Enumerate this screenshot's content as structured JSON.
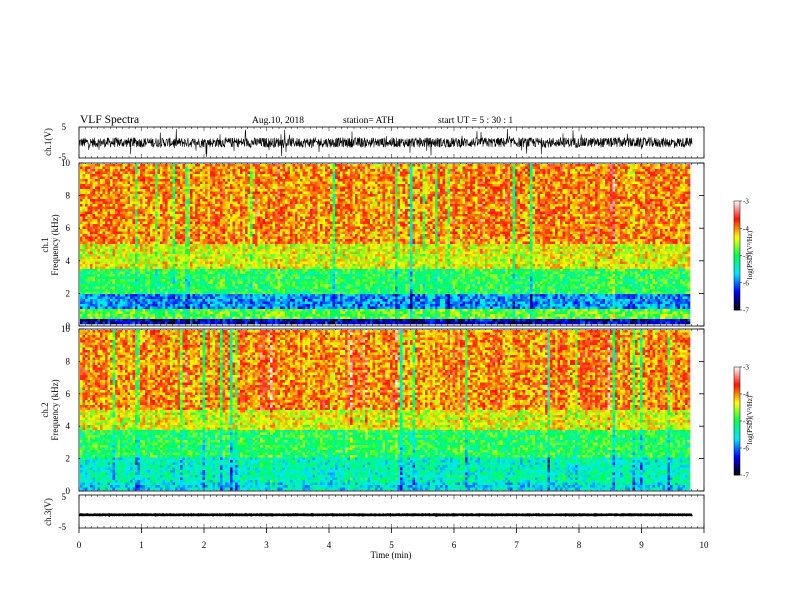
{
  "header": {
    "title": "VLF  Spectra",
    "date": "Aug.10, 2018",
    "station": "station= ATH",
    "start": "start  UT  =   5  : 30 : 1"
  },
  "chart_data": [
    {
      "type": "line",
      "panel": "ch1-waveform",
      "ylabel": "ch.1(V)",
      "ylim": [
        -5,
        5
      ],
      "yticks": [
        "5",
        "-5"
      ],
      "xlim": [
        0,
        10
      ],
      "trace": "dense broadband noise centered near 0 V, roughly ±2 V with spikes"
    },
    {
      "type": "heatmap",
      "panel": "ch1-spectrogram",
      "ylabel_lines": [
        "ch.1",
        "Frequency  (kHz)"
      ],
      "ylim": [
        0,
        10
      ],
      "yticks": [
        "0",
        "2",
        "4",
        "6",
        "8",
        "10"
      ],
      "xlim": [
        0,
        9.8
      ],
      "colorbar": {
        "label": "log(PSD)(V²/Hz)",
        "range": [
          -7,
          -3
        ],
        "ticks": [
          "-3",
          "-4",
          "-5",
          "-6",
          "-7"
        ]
      },
      "bands_log_psd": [
        {
          "f": [
            0,
            0.3
          ],
          "value": -6.5
        },
        {
          "f": [
            0.3,
            1.0
          ],
          "value": -4.8
        },
        {
          "f": [
            1.0,
            1.8
          ],
          "value": -5.9
        },
        {
          "f": [
            1.8,
            3.5
          ],
          "value": -5.0
        },
        {
          "f": [
            3.5,
            5.0
          ],
          "value": -4.4
        },
        {
          "f": [
            5.0,
            10.0
          ],
          "value": -4.0
        }
      ]
    },
    {
      "type": "heatmap",
      "panel": "ch2-spectrogram",
      "ylabel_lines": [
        "ch.2",
        "Frequency  (kHz)"
      ],
      "ylim": [
        0,
        10
      ],
      "yticks": [
        "0",
        "2",
        "4",
        "6",
        "8",
        "10"
      ],
      "xlim": [
        0,
        9.8
      ],
      "colorbar": {
        "label": "log(PSD)(V²/Hz)",
        "range": [
          -7,
          -3
        ],
        "ticks": [
          "-3",
          "-4",
          "-5",
          "-6",
          "-7"
        ]
      },
      "bands_log_psd": [
        {
          "f": [
            0,
            0.5
          ],
          "value": -5.6
        },
        {
          "f": [
            0.5,
            2.0
          ],
          "value": -5.4
        },
        {
          "f": [
            2.0,
            3.8
          ],
          "value": -5.0
        },
        {
          "f": [
            3.8,
            5.0
          ],
          "value": -4.4
        },
        {
          "f": [
            5.0,
            10.0
          ],
          "value": -4.0
        }
      ]
    },
    {
      "type": "line",
      "panel": "ch3-waveform",
      "ylabel": "ch.3(V)",
      "ylim": [
        -5,
        5
      ],
      "yticks": [
        "5",
        "-5"
      ],
      "xlim": [
        0,
        10
      ],
      "trace": "nearly flat trace at about -1 V"
    }
  ],
  "xaxis": {
    "label": "Time  (min)",
    "ticks": [
      "0",
      "1",
      "2",
      "3",
      "4",
      "5",
      "6",
      "7",
      "8",
      "9",
      "10"
    ],
    "range": [
      0,
      10
    ],
    "data_end": 9.8
  },
  "colors": {
    "colormap": [
      "#000000",
      "#0000ff",
      "#00e8ff",
      "#00ff50",
      "#ffff00",
      "#ff1000",
      "#ffffff"
    ],
    "trace": "#000000",
    "background": "#ffffff"
  }
}
